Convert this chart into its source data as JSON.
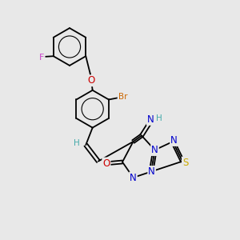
{
  "background_color": "#e8e8e8",
  "bond_color": "#000000",
  "atom_colors": {
    "F": "#cc44cc",
    "O": "#cc0000",
    "Br": "#cc6600",
    "N": "#0000cc",
    "S": "#ccaa00",
    "H": "#44aaaa",
    "C": "#000000"
  },
  "font_size": 7.5
}
